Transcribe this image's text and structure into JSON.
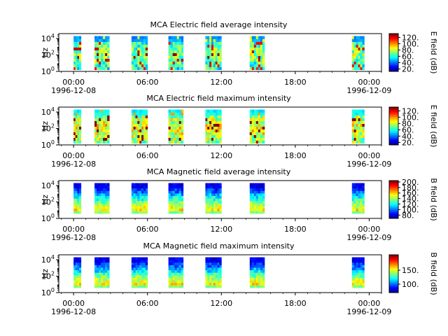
{
  "chart_data": [
    {
      "type": "heatmap",
      "title": "MCA  Electric field average intensity",
      "ylabel": "Hz",
      "y_scale": "log",
      "yticks": [
        {
          "base": "10",
          "exp": "0"
        },
        {
          "base": "10",
          "exp": "2"
        },
        {
          "base": "10",
          "exp": "4"
        }
      ],
      "xticks": [
        "00:00",
        "06:00",
        "12:00",
        "18:00",
        "00:00"
      ],
      "x_date_left": "1996-12-08",
      "x_date_right": "1996-12-09",
      "x_range_hours": [
        -1.2,
        25
      ],
      "y_range_log10": [
        0,
        4.6
      ],
      "colorbar": {
        "label": "E field (dB)",
        "range": [
          12,
          132
        ],
        "ticks": [
          "20.",
          "40.",
          "60.",
          "80.",
          "100.",
          "120."
        ],
        "tick_values": [
          20,
          40,
          60,
          80,
          100,
          120
        ]
      },
      "data_blocks_hours": [
        [
          0.0,
          0.6
        ],
        [
          1.7,
          2.9
        ],
        [
          4.7,
          6.0
        ],
        [
          7.7,
          8.9
        ],
        [
          10.7,
          12.0
        ],
        [
          14.3,
          15.5
        ],
        [
          22.6,
          23.6
        ]
      ],
      "data_ylim_log10": [
        0.2,
        4.3
      ],
      "intensity": "medium"
    },
    {
      "type": "heatmap",
      "title": "MCA  Electric field maximum intensity",
      "ylabel": "Hz",
      "y_scale": "log",
      "yticks": [
        {
          "base": "10",
          "exp": "0"
        },
        {
          "base": "10",
          "exp": "2"
        },
        {
          "base": "10",
          "exp": "4"
        }
      ],
      "xticks": [
        "00:00",
        "06:00",
        "12:00",
        "18:00",
        "00:00"
      ],
      "x_date_left": "1996-12-08",
      "x_date_right": "1996-12-09",
      "x_range_hours": [
        -1.2,
        25
      ],
      "y_range_log10": [
        0,
        4.6
      ],
      "colorbar": {
        "label": "E field (dB)",
        "range": [
          12,
          132
        ],
        "ticks": [
          "20.",
          "40.",
          "60.",
          "80.",
          "100.",
          "120."
        ],
        "tick_values": [
          20,
          40,
          60,
          80,
          100,
          120
        ]
      },
      "data_blocks_hours": [
        [
          0.0,
          0.6
        ],
        [
          1.7,
          2.9
        ],
        [
          4.7,
          6.0
        ],
        [
          7.7,
          8.9
        ],
        [
          10.7,
          12.0
        ],
        [
          14.3,
          15.5
        ],
        [
          22.6,
          23.6
        ]
      ],
      "data_ylim_log10": [
        0.2,
        4.3
      ],
      "intensity": "high"
    },
    {
      "type": "heatmap",
      "title": "MCA  Magnetic field average intensity",
      "ylabel": "Hz",
      "y_scale": "log",
      "yticks": [
        {
          "base": "10",
          "exp": "0"
        },
        {
          "base": "10",
          "exp": "2"
        },
        {
          "base": "10",
          "exp": "4"
        }
      ],
      "xticks": [
        "00:00",
        "06:00",
        "12:00",
        "18:00",
        "00:00"
      ],
      "x_date_left": "1996-12-08",
      "x_date_right": "1996-12-09",
      "x_range_hours": [
        -1.2,
        25
      ],
      "y_range_log10": [
        0,
        4.6
      ],
      "colorbar": {
        "label": "B field (dB)",
        "range": [
          68,
          205
        ],
        "ticks": [
          "80.",
          "100.",
          "120.",
          "140.",
          "160.",
          "180.",
          "200."
        ],
        "tick_values": [
          80,
          100,
          120,
          140,
          160,
          180,
          200
        ]
      },
      "data_blocks_hours": [
        [
          0.0,
          0.6
        ],
        [
          1.7,
          2.9
        ],
        [
          4.7,
          6.0
        ],
        [
          7.7,
          8.9
        ],
        [
          10.7,
          12.0
        ],
        [
          14.3,
          15.5
        ],
        [
          22.6,
          23.6
        ]
      ],
      "data_ylim_log10": [
        0.6,
        4.3
      ],
      "intensity": "magnetic"
    },
    {
      "type": "heatmap",
      "title": "MCA  Magnetic field maximum intensity",
      "ylabel": "Hz",
      "y_scale": "log",
      "yticks": [
        {
          "base": "10",
          "exp": "0"
        },
        {
          "base": "10",
          "exp": "2"
        },
        {
          "base": "10",
          "exp": "4"
        }
      ],
      "xticks": [
        "00:00",
        "06:00",
        "12:00",
        "18:00",
        "00:00"
      ],
      "x_date_left": "1996-12-08",
      "x_date_right": "1996-12-09",
      "x_range_hours": [
        -1.2,
        25
      ],
      "y_range_log10": [
        0,
        4.6
      ],
      "colorbar": {
        "label": "B field (dB)",
        "range": [
          70,
          205
        ],
        "ticks": [
          "100.",
          "150."
        ],
        "tick_values": [
          100,
          150
        ]
      },
      "data_blocks_hours": [
        [
          0.0,
          0.6
        ],
        [
          1.7,
          2.9
        ],
        [
          4.7,
          6.0
        ],
        [
          7.7,
          8.9
        ],
        [
          10.7,
          12.0
        ],
        [
          14.3,
          15.5
        ],
        [
          22.6,
          23.6
        ]
      ],
      "data_ylim_log10": [
        0.6,
        4.3
      ],
      "intensity": "magnetic"
    }
  ]
}
